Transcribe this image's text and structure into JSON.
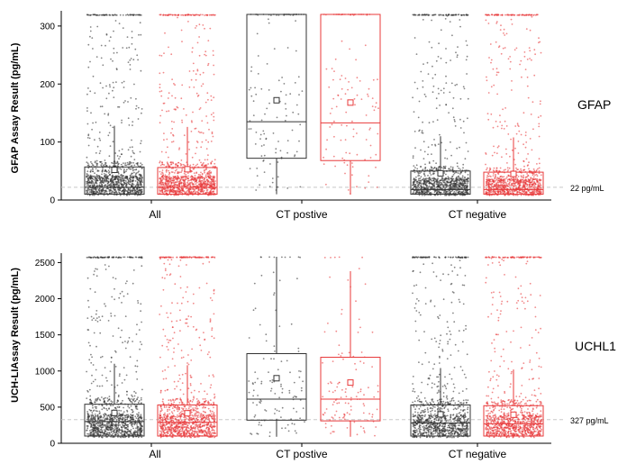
{
  "chart_data": [
    {
      "type": "box",
      "panel_label": "GFAP",
      "ylabel": "GFAP Assay Result (pg/mL)",
      "yticks": [
        0,
        100,
        200,
        300
      ],
      "ylim": [
        0,
        320
      ],
      "categories": [
        "All",
        "CT postive",
        "CT negative"
      ],
      "threshold": {
        "value": 22,
        "label": "22 pg/mL"
      },
      "series_colors": [
        "#333333",
        "#e8393a"
      ],
      "boxes": [
        {
          "category": "All",
          "series": 0,
          "whisker_low": 8,
          "q1": 10,
          "median": 22,
          "q3": 57,
          "whisker_high": 128,
          "mean": 52,
          "n_points": 1100
        },
        {
          "category": "All",
          "series": 1,
          "whisker_low": 8,
          "q1": 10,
          "median": 22,
          "q3": 56,
          "whisker_high": 126,
          "mean": 53,
          "n_points": 1100
        },
        {
          "category": "CT postive",
          "series": 0,
          "whisker_low": 10,
          "q1": 72,
          "median": 135,
          "q3": 320,
          "whisker_high": 320,
          "mean": 172,
          "n_points": 120
        },
        {
          "category": "CT postive",
          "series": 1,
          "whisker_low": 10,
          "q1": 68,
          "median": 133,
          "q3": 320,
          "whisker_high": 320,
          "mean": 168,
          "n_points": 120
        },
        {
          "category": "CT negative",
          "series": 0,
          "whisker_low": 8,
          "q1": 10,
          "median": 18,
          "q3": 50,
          "whisker_high": 110,
          "mean": 46,
          "n_points": 1000
        },
        {
          "category": "CT negative",
          "series": 1,
          "whisker_low": 8,
          "q1": 10,
          "median": 18,
          "q3": 48,
          "whisker_high": 108,
          "mean": 45,
          "n_points": 1000
        }
      ]
    },
    {
      "type": "box",
      "panel_label": "UCHL1",
      "ylabel": "UCH-LIAssay Result (pg/mL)",
      "yticks": [
        0,
        500,
        1000,
        1500,
        2000,
        2500
      ],
      "ylim": [
        0,
        2580
      ],
      "categories": [
        "All",
        "CT postive",
        "CT negative"
      ],
      "threshold": {
        "value": 327,
        "label": "327 pg/mL"
      },
      "series_colors": [
        "#333333",
        "#e8393a"
      ],
      "boxes": [
        {
          "category": "All",
          "series": 0,
          "whisker_low": 80,
          "q1": 100,
          "median": 300,
          "q3": 540,
          "whisker_high": 1100,
          "mean": 420,
          "n_points": 1100
        },
        {
          "category": "All",
          "series": 1,
          "whisker_low": 80,
          "q1": 100,
          "median": 290,
          "q3": 530,
          "whisker_high": 1080,
          "mean": 415,
          "n_points": 1100
        },
        {
          "category": "CT postive",
          "series": 0,
          "whisker_low": 90,
          "q1": 320,
          "median": 610,
          "q3": 1240,
          "whisker_high": 2580,
          "mean": 900,
          "n_points": 120
        },
        {
          "category": "CT postive",
          "series": 1,
          "whisker_low": 90,
          "q1": 310,
          "median": 610,
          "q3": 1190,
          "whisker_high": 2380,
          "mean": 840,
          "n_points": 120
        },
        {
          "category": "CT negative",
          "series": 0,
          "whisker_low": 80,
          "q1": 100,
          "median": 280,
          "q3": 530,
          "whisker_high": 1040,
          "mean": 400,
          "n_points": 1000
        },
        {
          "category": "CT negative",
          "series": 1,
          "whisker_low": 80,
          "q1": 100,
          "median": 270,
          "q3": 520,
          "whisker_high": 1020,
          "mean": 395,
          "n_points": 1000
        }
      ]
    }
  ]
}
